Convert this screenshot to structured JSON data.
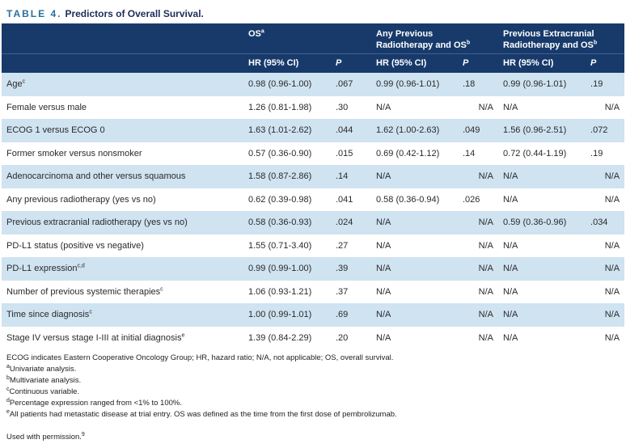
{
  "title": {
    "label": "TABLE 4.",
    "text": "Predictors of Overall Survival."
  },
  "header": {
    "groups": [
      {
        "label": "OS",
        "sup": "a"
      },
      {
        "line1": "Any Previous",
        "line2": "Radiotherapy and OS",
        "sup": "b"
      },
      {
        "line1": "Previous Extracranial",
        "line2": "Radiotherapy and OS",
        "sup": "b"
      }
    ],
    "sub": {
      "hr": "HR (95% CI)",
      "p": "P"
    }
  },
  "rows": [
    {
      "label": "Age",
      "sup": "c",
      "os_hr": "0.98 (0.96-1.00)",
      "os_p": ".067",
      "any_hr": "0.99 (0.96-1.01)",
      "any_p": ".18",
      "ext_hr": "0.99 (0.96-1.01)",
      "ext_p": ".19"
    },
    {
      "label": "Female versus male",
      "os_hr": "1.26 (0.81-1.98)",
      "os_p": ".30",
      "any_hr": "N/A",
      "any_p": "N/A",
      "ext_hr": "N/A",
      "ext_p": "N/A"
    },
    {
      "label": "ECOG 1 versus ECOG 0",
      "os_hr": "1.63 (1.01-2.62)",
      "os_p": ".044",
      "any_hr": "1.62 (1.00-2.63)",
      "any_p": ".049",
      "ext_hr": "1.56 (0.96-2.51)",
      "ext_p": ".072"
    },
    {
      "label": "Former smoker versus nonsmoker",
      "os_hr": "0.57 (0.36-0.90)",
      "os_p": ".015",
      "any_hr": "0.69 (0.42-1.12)",
      "any_p": ".14",
      "ext_hr": "0.72 (0.44-1.19)",
      "ext_p": ".19"
    },
    {
      "label": "Adenocarcinoma and other versus squamous",
      "os_hr": "1.58 (0.87-2.86)",
      "os_p": ".14",
      "any_hr": "N/A",
      "any_p": "N/A",
      "ext_hr": "N/A",
      "ext_p": "N/A"
    },
    {
      "label": "Any previous radiotherapy (yes vs no)",
      "os_hr": "0.62 (0.39-0.98)",
      "os_p": ".041",
      "any_hr": "0.58 (0.36-0.94)",
      "any_p": ".026",
      "ext_hr": "N/A",
      "ext_p": "N/A"
    },
    {
      "label": "Previous extracranial radiotherapy (yes vs no)",
      "os_hr": "0.58 (0.36-0.93)",
      "os_p": ".024",
      "any_hr": "N/A",
      "any_p": "N/A",
      "ext_hr": "0.59 (0.36-0.96)",
      "ext_p": ".034"
    },
    {
      "label": "PD-L1 status (positive vs negative)",
      "os_hr": "1.55 (0.71-3.40)",
      "os_p": ".27",
      "any_hr": "N/A",
      "any_p": "N/A",
      "ext_hr": "N/A",
      "ext_p": "N/A"
    },
    {
      "label": "PD-L1 expression",
      "sup": "c,d",
      "os_hr": "0.99 (0.99-1.00)",
      "os_p": ".39",
      "any_hr": "N/A",
      "any_p": "N/A",
      "ext_hr": "N/A",
      "ext_p": "N/A"
    },
    {
      "label": "Number of previous systemic therapies",
      "sup": "c",
      "os_hr": "1.06 (0.93-1.21)",
      "os_p": ".37",
      "any_hr": "N/A",
      "any_p": "N/A",
      "ext_hr": "N/A",
      "ext_p": "N/A"
    },
    {
      "label": "Time since diagnosis",
      "sup": "c",
      "os_hr": "1.00 (0.99-1.01)",
      "os_p": ".69",
      "any_hr": "N/A",
      "any_p": "N/A",
      "ext_hr": "N/A",
      "ext_p": "N/A"
    },
    {
      "label": "Stage IV versus stage I-III at initial diagnosis",
      "sup": "e",
      "os_hr": "1.39 (0.84-2.29)",
      "os_p": ".20",
      "any_hr": "N/A",
      "any_p": "N/A",
      "ext_hr": "N/A",
      "ext_p": "N/A"
    }
  ],
  "footnotes": {
    "abbreviations": "ECOG indicates Eastern Cooperative Oncology Group; HR, hazard ratio; N/A, not applicable; OS, overall survival.",
    "items": [
      {
        "mark": "a",
        "text": "Univariate analysis."
      },
      {
        "mark": "b",
        "text": "Multivariate analysis."
      },
      {
        "mark": "c",
        "text": "Continuous variable."
      },
      {
        "mark": "d",
        "text": "Percentage expression ranged from <1% to 100%."
      },
      {
        "mark": "e",
        "text": "All patients had metastatic disease at trial entry. OS was defined as the time from the first dose of pembrolizumab."
      }
    ]
  },
  "permission": {
    "text": "Used with permission.",
    "sup": "9"
  }
}
